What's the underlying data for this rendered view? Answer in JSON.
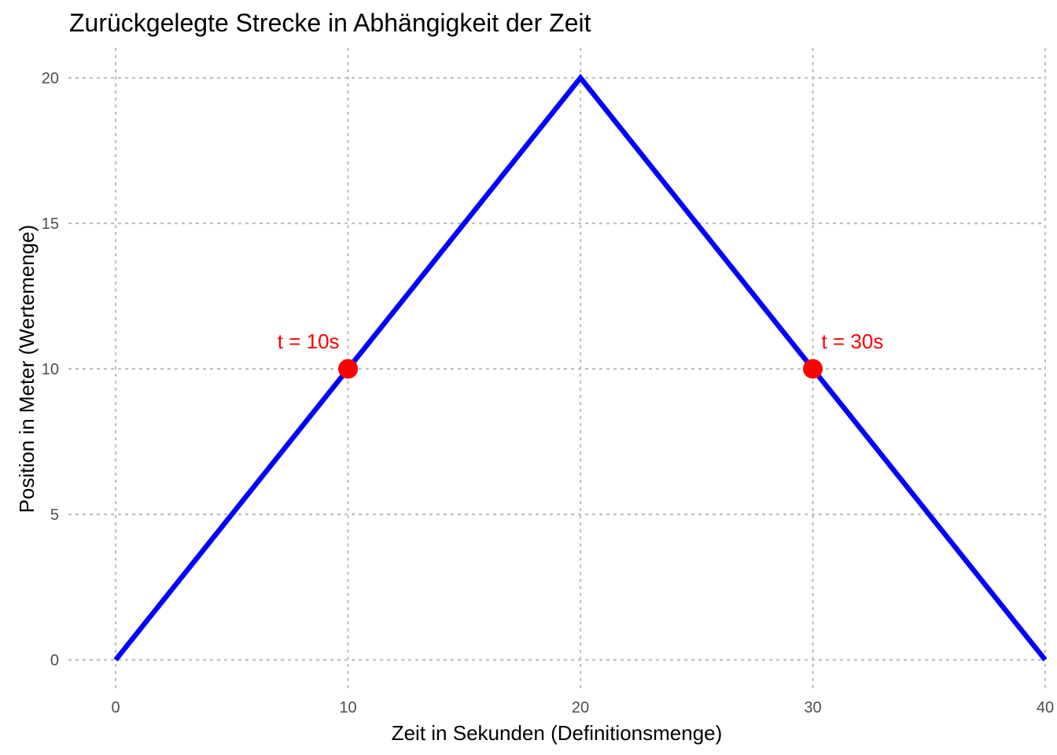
{
  "chart_data": {
    "type": "line",
    "title": "Zurückgelegte Strecke in Abhängigkeit der Zeit",
    "xlabel": "Zeit in Sekunden (Definitionsmenge)",
    "ylabel": "Position in Meter (Wertemenge)",
    "xlim": [
      -2,
      40
    ],
    "ylim": [
      -1,
      21
    ],
    "x_ticks": [
      0,
      10,
      20,
      30,
      40
    ],
    "y_ticks": [
      0,
      5,
      10,
      15,
      20
    ],
    "grid": true,
    "series": [
      {
        "color": "#0000ff",
        "x": [
          0,
          20,
          40
        ],
        "y": [
          0,
          20,
          0
        ]
      }
    ],
    "points": [
      {
        "x": 10,
        "y": 10,
        "color": "#ff0000",
        "label": "t = 10s",
        "label_position": "upper-left"
      },
      {
        "x": 30,
        "y": 10,
        "color": "#ff0000",
        "label": "t = 30s",
        "label_position": "upper-right"
      }
    ]
  }
}
